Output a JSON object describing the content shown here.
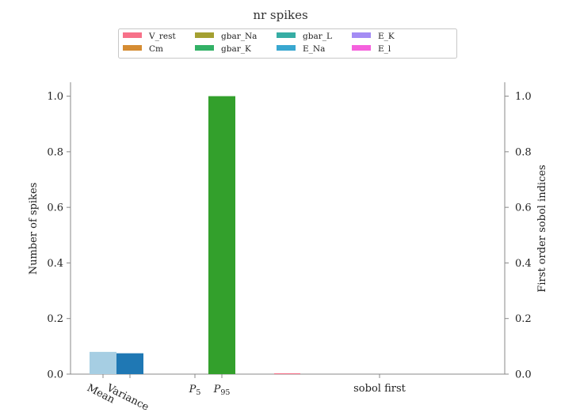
{
  "chart_data": {
    "type": "bar",
    "title": "nr spikes",
    "ylabel_left": "Number of spikes",
    "ylabel_right": "First order sobol indices",
    "ylim": [
      0,
      1.05
    ],
    "yticks": [
      "0.0",
      "0.2",
      "0.4",
      "0.6",
      "0.8",
      "1.0"
    ],
    "categories": [
      {
        "label": "Mean",
        "sub": ""
      },
      {
        "label": "Variance",
        "sub": ""
      },
      {
        "label": "P",
        "sub": "5"
      },
      {
        "label": "P",
        "sub": "95"
      },
      {
        "label": "sobol first",
        "sub": ""
      }
    ],
    "stat_series": [
      {
        "category": "Mean",
        "value": 0.08,
        "color": "#a6cee3"
      },
      {
        "category": "Variance",
        "value": 0.075,
        "color": "#1f78b4"
      },
      {
        "category": "P5",
        "value": 0.0,
        "color": "#b2df8a"
      },
      {
        "category": "P95",
        "value": 1.0,
        "color": "#33a02c"
      }
    ],
    "sobol_series": [
      {
        "name": "V_rest",
        "value": 0.003,
        "color": "#f77189"
      },
      {
        "name": "Cm",
        "value": 0.0,
        "color": "#d58c32"
      },
      {
        "name": "gbar_Na",
        "value": 0.0,
        "color": "#a4a031"
      },
      {
        "name": "gbar_K",
        "value": 0.0,
        "color": "#32b166"
      },
      {
        "name": "gbar_L",
        "value": 0.0,
        "color": "#36ada4"
      },
      {
        "name": "E_Na",
        "value": 0.0,
        "color": "#39a7d0"
      },
      {
        "name": "E_K",
        "value": 0.0,
        "color": "#a48cf4"
      },
      {
        "name": "E_l",
        "value": 0.0,
        "color": "#f561dd"
      }
    ],
    "legend_position": "top-center",
    "grid": false
  }
}
